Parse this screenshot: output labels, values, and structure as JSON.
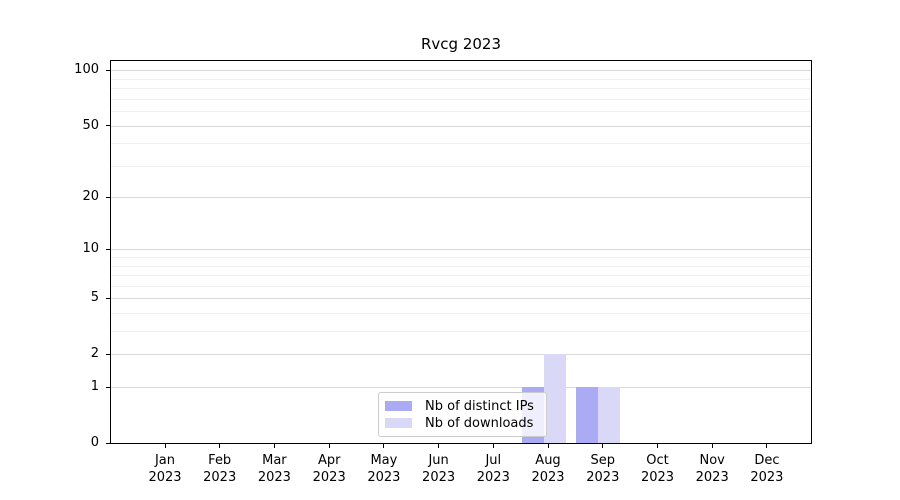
{
  "chart_data": {
    "type": "bar",
    "title": "Rvcg 2023",
    "year_label": "2023",
    "categories": [
      "Jan",
      "Feb",
      "Mar",
      "Apr",
      "May",
      "Jun",
      "Jul",
      "Aug",
      "Sep",
      "Oct",
      "Nov",
      "Dec"
    ],
    "series": [
      {
        "name": "Nb of distinct IPs",
        "color": "#aaaaf5",
        "values": [
          0,
          0,
          0,
          0,
          0,
          0,
          0,
          1,
          1,
          0,
          0,
          0
        ]
      },
      {
        "name": "Nb of downloads",
        "color": "#d9d9f7",
        "values": [
          0,
          0,
          0,
          0,
          0,
          0,
          0,
          2,
          1,
          0,
          0,
          0
        ]
      }
    ],
    "xlabel": "",
    "ylabel": "",
    "y_axis": {
      "scale": "log10(1+x)",
      "tick_values": [
        0,
        1,
        2,
        5,
        10,
        20,
        50,
        100
      ],
      "minor_gridline_values": [
        3,
        4,
        6,
        7,
        8,
        9,
        30,
        40,
        60,
        70,
        80,
        90
      ],
      "ylim": [
        0,
        114
      ]
    },
    "grid": "horizontal",
    "legend_position": "inside-bottom-center"
  },
  "colors": {
    "background": "#ffffff",
    "axis": "#000000",
    "text": "#000000",
    "major_grid": "#d9d9d9",
    "minor_grid": "#f0f0f0",
    "legend_border": "#cccccc"
  }
}
